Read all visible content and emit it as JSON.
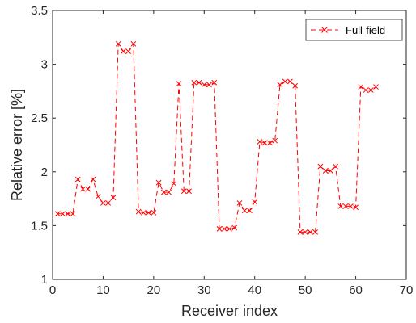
{
  "chart_data": {
    "type": "line",
    "xlabel": "Receiver index",
    "ylabel": "Relative error [%]",
    "xlim": [
      0,
      70
    ],
    "ylim": [
      1,
      3.5
    ],
    "xticks": [
      0,
      10,
      20,
      30,
      40,
      50,
      60,
      70
    ],
    "yticks": [
      1,
      1.5,
      2,
      2.5,
      3,
      3.5
    ],
    "xtick_labels": [
      "0",
      "10",
      "20",
      "30",
      "40",
      "50",
      "60",
      "70"
    ],
    "ytick_labels": [
      "1",
      "1.5",
      "2",
      "2.5",
      "3",
      "3.5"
    ],
    "grid": false,
    "legend": {
      "position": "top-right"
    },
    "series": [
      {
        "name": "Full-field",
        "color": "#ff0000",
        "line_style": "dashed",
        "marker": "x",
        "x": [
          1,
          2,
          3,
          4,
          5,
          6,
          7,
          8,
          9,
          10,
          11,
          12,
          13,
          14,
          15,
          16,
          17,
          18,
          19,
          20,
          21,
          22,
          23,
          24,
          25,
          26,
          27,
          28,
          29,
          30,
          31,
          32,
          33,
          34,
          35,
          36,
          37,
          38,
          39,
          40,
          41,
          42,
          43,
          44,
          45,
          46,
          47,
          48,
          49,
          50,
          51,
          52,
          53,
          54,
          55,
          56,
          57,
          58,
          59,
          60,
          61,
          62,
          63,
          64
        ],
        "y": [
          1.61,
          1.61,
          1.61,
          1.61,
          1.93,
          1.84,
          1.84,
          1.93,
          1.77,
          1.71,
          1.71,
          1.76,
          3.19,
          3.12,
          3.12,
          3.19,
          1.63,
          1.62,
          1.62,
          1.62,
          1.9,
          1.81,
          1.81,
          1.89,
          2.82,
          1.82,
          1.82,
          2.83,
          2.83,
          2.81,
          2.81,
          2.83,
          1.47,
          1.47,
          1.47,
          1.48,
          1.71,
          1.64,
          1.64,
          1.72,
          2.28,
          2.27,
          2.27,
          2.29,
          2.81,
          2.84,
          2.84,
          2.8,
          1.44,
          1.44,
          1.44,
          1.44,
          2.05,
          2.01,
          2.01,
          2.05,
          1.68,
          1.68,
          1.68,
          1.67,
          2.79,
          2.76,
          2.76,
          2.79
        ]
      }
    ]
  }
}
